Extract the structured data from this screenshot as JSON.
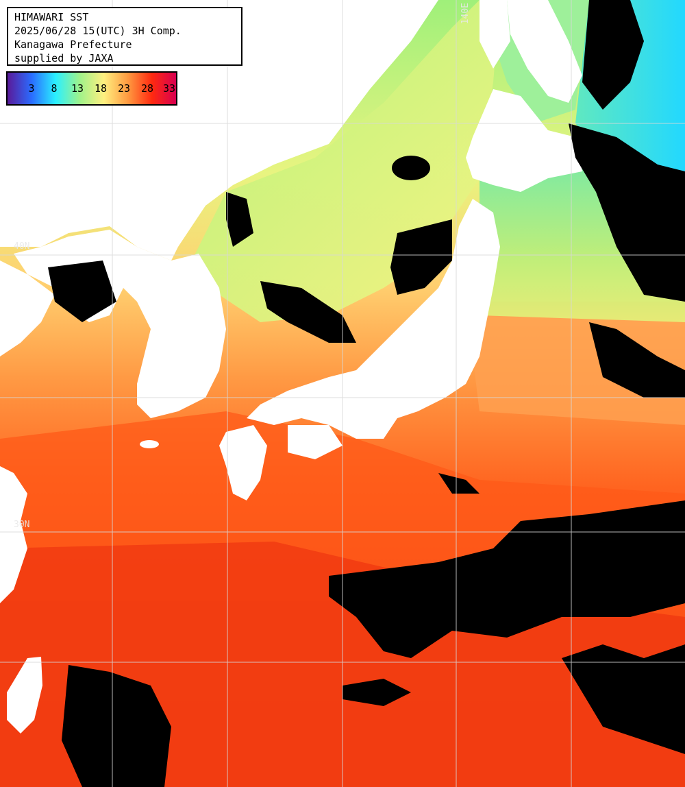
{
  "header": {
    "line1": "HIMAWARI SST",
    "line2": "2025/06/28 15(UTC) 3H Comp.",
    "line3": "Kanagawa Prefecture",
    "line4": "supplied by JAXA"
  },
  "legend": {
    "ticks": [
      "3",
      "8",
      "13",
      "18",
      "23",
      "28",
      "33"
    ],
    "colors": [
      "#5a1a9a",
      "#2a6cff",
      "#2af0ff",
      "#9ff28a",
      "#fff080",
      "#ff9a40",
      "#ff2a10",
      "#d80050"
    ]
  },
  "grid_labels": {
    "lon_140": "140E",
    "lat_upper": "40N",
    "lat_lower": "30N"
  },
  "colors": {
    "land": "#ffffff",
    "cloud": "#000000",
    "grid": "#d8d8d8",
    "sst_cold": "#3fe6e0",
    "sst_cool": "#a8f07a",
    "sst_mild": "#f0f080",
    "sst_warm": "#ffb060",
    "sst_hot": "#ff6a20",
    "sst_very_hot": "#f03010"
  }
}
